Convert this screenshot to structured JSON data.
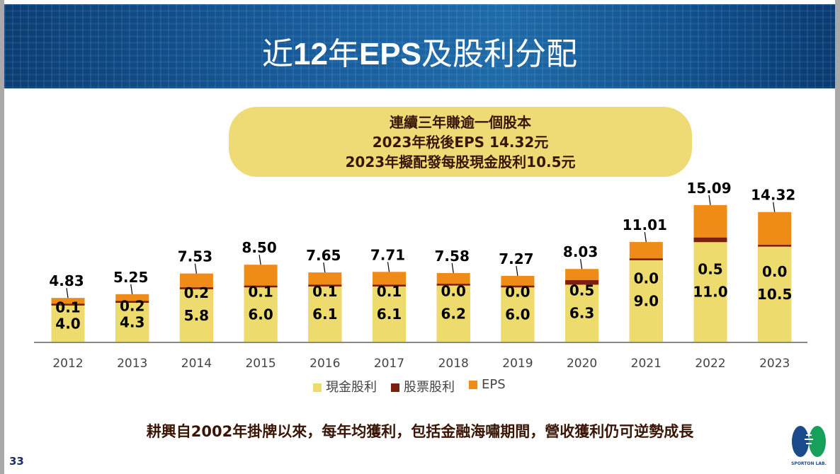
{
  "slide": {
    "title_parts": [
      "近",
      "12",
      "年",
      "EPS",
      "及股利分配"
    ],
    "highlight_lines": [
      "連續三年賺逾一個股本",
      "2023年稅後EPS 14.32元",
      "2023年擬配發每股現金股利10.5元"
    ],
    "footer": "耕興自2002年掛牌以來，每年均獲利，包括金融海嘯期間，營收獲利仍可逆勢成長",
    "page_number": "33",
    "logo_text": "SPORTON LAB."
  },
  "chart_data": {
    "type": "bar",
    "stacked": true,
    "categories": [
      "2012",
      "2013",
      "2014",
      "2015",
      "2016",
      "2017",
      "2018",
      "2019",
      "2020",
      "2021",
      "2022",
      "2023"
    ],
    "series": [
      {
        "name": "現金股利",
        "color": "#eedb6e",
        "values": [
          4.0,
          4.3,
          5.8,
          6.0,
          6.1,
          6.1,
          6.2,
          6.0,
          6.3,
          9.0,
          11.0,
          10.5
        ]
      },
      {
        "name": "股票股利",
        "color": "#7b1f10",
        "values": [
          0.1,
          0.2,
          0.2,
          0.1,
          0.1,
          0.1,
          0.0,
          0.0,
          0.5,
          0.0,
          0.5,
          0.0
        ]
      },
      {
        "name": "EPS",
        "color": "#ee8c17",
        "values": [
          4.83,
          5.25,
          7.53,
          8.5,
          7.65,
          7.71,
          7.58,
          7.27,
          8.03,
          11.01,
          15.09,
          14.32
        ]
      }
    ],
    "eps_labels": [
      "4.83",
      "5.25",
      "7.53",
      "8.50",
      "7.65",
      "7.71",
      "7.58",
      "7.27",
      "8.03",
      "11.01",
      "15.09",
      "14.32"
    ],
    "cash_labels": [
      "4.0",
      "4.3",
      "5.8",
      "6.0",
      "6.1",
      "6.1",
      "6.2",
      "6.0",
      "6.3",
      "9.0",
      "11.0",
      "10.5"
    ],
    "stock_labels": [
      "0.1",
      "0.2",
      "0.2",
      "0.1",
      "0.1",
      "0.1",
      "0.0",
      "0.0",
      "0.5",
      "0.0",
      "0.5",
      "0.0"
    ],
    "legend_position": "bottom",
    "grid": false
  }
}
